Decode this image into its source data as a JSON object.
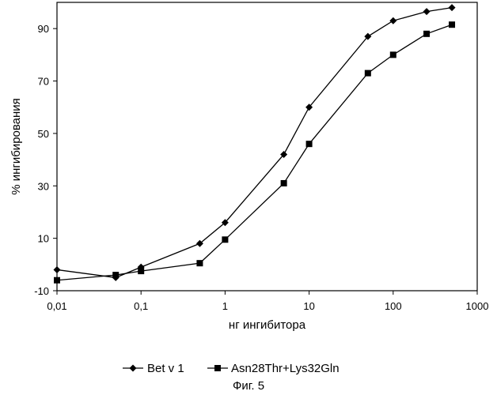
{
  "chart_data": {
    "type": "line",
    "x_scale": "log",
    "x_ticks": [
      0.01,
      0.1,
      1,
      10,
      100,
      1000
    ],
    "x_tick_labels": [
      "0,01",
      "0,1",
      "1",
      "10",
      "100",
      "1000"
    ],
    "y_ticks": [
      -10,
      10,
      30,
      50,
      70,
      90
    ],
    "y_tick_labels": [
      "-10",
      "10",
      "30",
      "50",
      "70",
      "90"
    ],
    "xlim": [
      0.01,
      1000
    ],
    "ylim": [
      -10,
      100
    ],
    "xlabel": "нг ингибитора",
    "ylabel": "% ингибирования",
    "grid": false,
    "legend_position": "bottom",
    "series": [
      {
        "name": "Bet v 1",
        "marker": "diamond",
        "color": "#000000",
        "x": [
          0.01,
          0.05,
          0.1,
          0.5,
          1,
          5,
          10,
          50,
          100,
          250,
          500
        ],
        "y": [
          -2,
          -5,
          -1,
          8,
          16,
          42,
          60,
          87,
          93,
          96.5,
          98
        ]
      },
      {
        "name": "Asn28Thr+Lys32Gln",
        "marker": "square",
        "color": "#000000",
        "x": [
          0.01,
          0.05,
          0.1,
          0.5,
          1,
          5,
          10,
          50,
          100,
          250,
          500
        ],
        "y": [
          -6,
          -4,
          -2.5,
          0.5,
          9.5,
          31,
          46,
          73,
          80,
          88,
          91.5
        ]
      }
    ],
    "caption": "Фиг. 5"
  }
}
